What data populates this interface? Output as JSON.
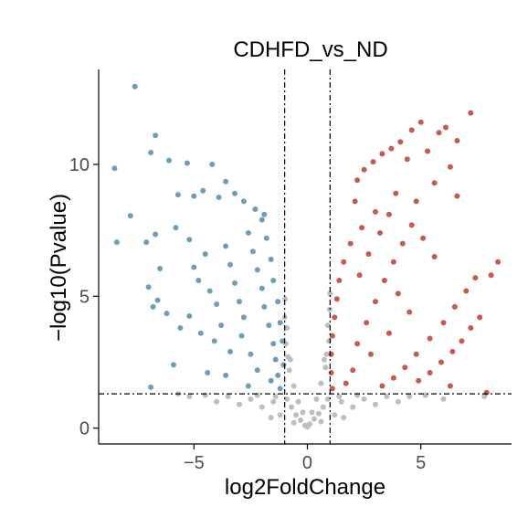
{
  "chart_data": {
    "type": "scatter",
    "title": "CDHFD_vs_ND",
    "xlabel": "log2FoldChange",
    "ylabel": "−log10(Pvalue)",
    "xlim": [
      -9.2,
      9.0
    ],
    "ylim": [
      -0.6,
      13.6
    ],
    "x_ticks": [
      -5,
      0,
      5
    ],
    "x_tick_labels": [
      "−5",
      "0",
      "5"
    ],
    "y_ticks": [
      0,
      5,
      10
    ],
    "y_tick_labels": [
      "0",
      "5",
      "10"
    ],
    "grid": false,
    "legend": "none",
    "thresholds": {
      "log2fc": [
        -1,
        1
      ],
      "neg_log10_p": 1.3
    },
    "colors": {
      "down": "#6a9fba",
      "up": "#c9594b",
      "not_significant": "#bebebe",
      "threshold_line": "#000000",
      "axis": "#000000"
    },
    "series": [
      {
        "group": "down",
        "points": [
          [
            -7.6,
            12.95
          ],
          [
            -6.7,
            11.1
          ],
          [
            -8.5,
            9.85
          ],
          [
            -6.9,
            10.45
          ],
          [
            -6.1,
            10.15
          ],
          [
            -5.3,
            10.05
          ],
          [
            -4.2,
            10.0
          ],
          [
            -3.6,
            9.35
          ],
          [
            -4.6,
            9.0
          ],
          [
            -5.7,
            8.85
          ],
          [
            -5.0,
            8.8
          ],
          [
            -3.9,
            8.75
          ],
          [
            -3.2,
            8.9
          ],
          [
            -2.8,
            8.6
          ],
          [
            -7.8,
            8.05
          ],
          [
            -8.4,
            7.05
          ],
          [
            -6.7,
            7.35
          ],
          [
            -7.1,
            7.05
          ],
          [
            -5.8,
            7.6
          ],
          [
            -5.2,
            7.15
          ],
          [
            -6.5,
            6.05
          ],
          [
            -7.0,
            5.35
          ],
          [
            -6.6,
            4.85
          ],
          [
            -6.8,
            4.6
          ],
          [
            -6.2,
            4.35
          ],
          [
            -5.0,
            6.1
          ],
          [
            -4.8,
            5.6
          ],
          [
            -4.5,
            6.6
          ],
          [
            -4.3,
            5.2
          ],
          [
            -4.0,
            4.7
          ],
          [
            -5.2,
            4.25
          ],
          [
            -3.6,
            6.9
          ],
          [
            -3.4,
            6.2
          ],
          [
            -3.2,
            5.5
          ],
          [
            -3.0,
            4.8
          ],
          [
            -2.8,
            4.2
          ],
          [
            -3.8,
            3.9
          ],
          [
            -2.6,
            7.4
          ],
          [
            -2.4,
            6.7
          ],
          [
            -2.2,
            6.0
          ],
          [
            -2.0,
            5.3
          ],
          [
            -1.9,
            4.6
          ],
          [
            -1.7,
            3.9
          ],
          [
            -1.5,
            3.2
          ],
          [
            -1.4,
            2.6
          ],
          [
            -1.3,
            2.0
          ],
          [
            -1.2,
            1.5
          ],
          [
            -2.9,
            3.5
          ],
          [
            -2.5,
            2.8
          ],
          [
            -2.2,
            2.2
          ],
          [
            -3.4,
            2.9
          ],
          [
            -4.1,
            3.3
          ],
          [
            -4.7,
            3.6
          ],
          [
            -5.6,
            3.8
          ],
          [
            -5.9,
            2.4
          ],
          [
            -6.9,
            1.55
          ],
          [
            -2.0,
            7.9
          ],
          [
            -1.8,
            7.2
          ],
          [
            -1.6,
            6.4
          ],
          [
            -1.5,
            5.6
          ],
          [
            -1.3,
            4.8
          ],
          [
            -1.2,
            4.0
          ],
          [
            -1.1,
            3.3
          ],
          [
            -1.05,
            2.4
          ],
          [
            -1.6,
            1.8
          ],
          [
            -2.6,
            1.6
          ],
          [
            -3.6,
            2.0
          ],
          [
            -4.4,
            2.1
          ],
          [
            -1.9,
            8.1
          ],
          [
            -2.3,
            8.3
          ]
        ]
      },
      {
        "group": "up",
        "points": [
          [
            7.2,
            11.95
          ],
          [
            6.1,
            11.4
          ],
          [
            5.0,
            11.6
          ],
          [
            5.8,
            11.2
          ],
          [
            6.6,
            10.9
          ],
          [
            4.6,
            11.3
          ],
          [
            4.1,
            10.85
          ],
          [
            3.7,
            10.6
          ],
          [
            3.3,
            10.4
          ],
          [
            2.9,
            10.1
          ],
          [
            2.5,
            9.8
          ],
          [
            2.2,
            9.4
          ],
          [
            4.4,
            10.2
          ],
          [
            5.3,
            10.5
          ],
          [
            6.3,
            9.9
          ],
          [
            5.6,
            9.3
          ],
          [
            6.6,
            8.8
          ],
          [
            4.8,
            8.6
          ],
          [
            3.9,
            8.9
          ],
          [
            3.0,
            8.2
          ],
          [
            2.4,
            7.6
          ],
          [
            1.9,
            7.0
          ],
          [
            1.6,
            6.3
          ],
          [
            1.4,
            5.6
          ],
          [
            1.3,
            4.9
          ],
          [
            1.2,
            4.2
          ],
          [
            1.1,
            3.5
          ],
          [
            1.05,
            2.8
          ],
          [
            1.05,
            2.1
          ],
          [
            1.1,
            1.5
          ],
          [
            8.4,
            6.3
          ],
          [
            8.1,
            5.8
          ],
          [
            7.4,
            5.7
          ],
          [
            7.0,
            5.2
          ],
          [
            6.5,
            4.6
          ],
          [
            6.0,
            4.0
          ],
          [
            5.4,
            3.4
          ],
          [
            4.8,
            2.8
          ],
          [
            4.3,
            2.3
          ],
          [
            3.8,
            1.9
          ],
          [
            3.3,
            1.6
          ],
          [
            7.6,
            4.2
          ],
          [
            7.2,
            3.8
          ],
          [
            6.8,
            3.3
          ],
          [
            6.4,
            2.9
          ],
          [
            5.9,
            2.5
          ],
          [
            5.4,
            2.1
          ],
          [
            4.9,
            1.8
          ],
          [
            6.3,
            1.6
          ],
          [
            7.9,
            1.35
          ],
          [
            2.2,
            3.2
          ],
          [
            2.6,
            4.0
          ],
          [
            3.0,
            4.8
          ],
          [
            3.4,
            5.6
          ],
          [
            3.8,
            6.3
          ],
          [
            4.2,
            7.0
          ],
          [
            4.6,
            7.7
          ],
          [
            5.1,
            7.2
          ],
          [
            5.6,
            6.5
          ],
          [
            4.0,
            5.1
          ],
          [
            4.5,
            4.4
          ],
          [
            3.6,
            3.6
          ],
          [
            2.8,
            2.8
          ],
          [
            2.0,
            2.2
          ],
          [
            1.7,
            1.7
          ],
          [
            2.3,
            5.8
          ],
          [
            2.7,
            6.6
          ],
          [
            3.2,
            7.4
          ],
          [
            3.6,
            8.1
          ],
          [
            2.1,
            8.6
          ]
        ]
      },
      {
        "group": "not_significant",
        "points": [
          [
            -0.9,
            1.1
          ],
          [
            -0.7,
            0.8
          ],
          [
            -0.5,
            0.5
          ],
          [
            -0.3,
            0.3
          ],
          [
            -0.1,
            0.1
          ],
          [
            0.1,
            0.15
          ],
          [
            0.3,
            0.35
          ],
          [
            0.5,
            0.55
          ],
          [
            0.7,
            0.8
          ],
          [
            0.9,
            1.1
          ],
          [
            -0.8,
            2.2
          ],
          [
            -0.6,
            1.6
          ],
          [
            -0.4,
            1.0
          ],
          [
            0.4,
            1.1
          ],
          [
            0.6,
            1.7
          ],
          [
            0.8,
            2.3
          ],
          [
            -0.95,
            3.2
          ],
          [
            -0.85,
            2.7
          ],
          [
            0.85,
            2.8
          ],
          [
            0.95,
            3.3
          ],
          [
            -1.0,
            4.2
          ],
          [
            -0.98,
            4.9
          ],
          [
            0.98,
            4.5
          ],
          [
            1.0,
            5.1
          ],
          [
            -0.2,
            0.6
          ],
          [
            0.2,
            0.6
          ],
          [
            -1.5,
            1.0
          ],
          [
            -2.0,
            0.8
          ],
          [
            -2.5,
            1.1
          ],
          [
            -3.0,
            0.9
          ],
          [
            -3.5,
            1.2
          ],
          [
            -4.0,
            1.0
          ],
          [
            -4.5,
            1.25
          ],
          [
            -5.2,
            1.2
          ],
          [
            -5.7,
            1.3
          ],
          [
            1.5,
            1.0
          ],
          [
            2.0,
            0.8
          ],
          [
            2.5,
            1.1
          ],
          [
            3.0,
            0.9
          ],
          [
            3.5,
            1.2
          ],
          [
            4.0,
            1.0
          ],
          [
            4.5,
            1.2
          ],
          [
            5.2,
            1.25
          ],
          [
            6.0,
            1.1
          ],
          [
            7.8,
            1.2
          ],
          [
            -1.2,
            0.5
          ],
          [
            -1.6,
            0.4
          ],
          [
            1.2,
            0.5
          ],
          [
            1.6,
            0.4
          ],
          [
            -0.6,
            0.2
          ],
          [
            0.6,
            0.25
          ],
          [
            0.0,
            0.05
          ],
          [
            -1.4,
            1.2
          ],
          [
            1.4,
            1.2
          ],
          [
            -0.75,
            2.6
          ],
          [
            0.75,
            2.6
          ],
          [
            -0.9,
            3.8
          ],
          [
            0.9,
            3.9
          ],
          [
            -2.2,
            1.25
          ],
          [
            2.2,
            1.25
          ]
        ]
      }
    ]
  }
}
